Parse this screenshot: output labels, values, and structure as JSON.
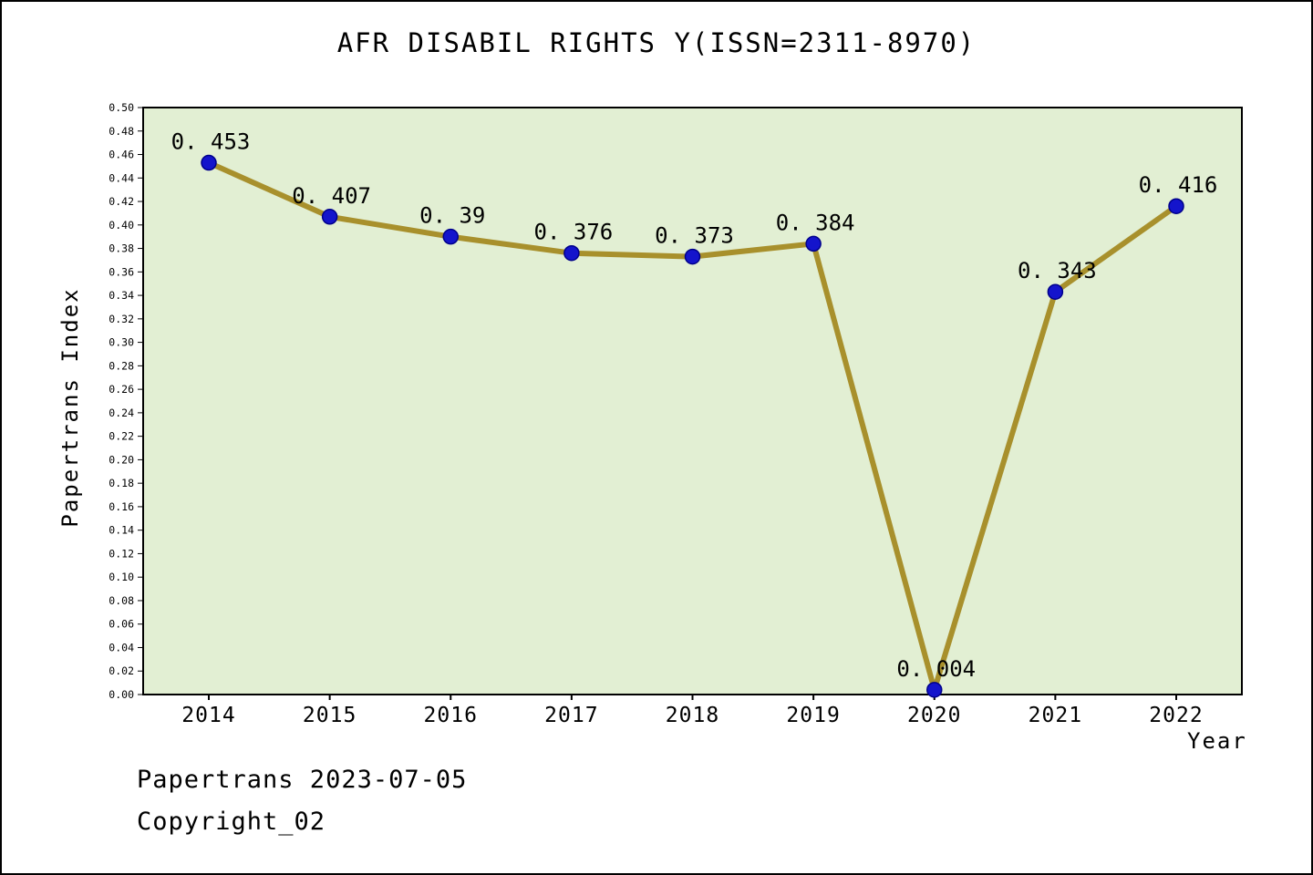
{
  "chart_data": {
    "type": "line",
    "title": "AFR DISABIL RIGHTS Y(ISSN=2311-8970)",
    "xlabel": "Year",
    "ylabel": "Papertrans Index",
    "x": [
      2014,
      2015,
      2016,
      2017,
      2018,
      2019,
      2020,
      2021,
      2022
    ],
    "values": [
      0.453,
      0.407,
      0.39,
      0.376,
      0.373,
      0.384,
      0.004,
      0.343,
      0.416
    ],
    "point_labels": [
      "0. 453",
      "0. 407",
      "0. 39",
      "0. 376",
      "0. 373",
      "0. 384",
      "0. 004",
      "0. 343",
      "0. 416"
    ],
    "ylim": [
      0.0,
      0.5
    ],
    "ytick_step": 0.02,
    "grid": false,
    "legend": "none",
    "colors": {
      "plot_bg": "#e2efd3",
      "line": "#a8902c",
      "point_fill": "#1414cc",
      "point_stroke": "#00008b",
      "axis": "#000000"
    }
  },
  "footer": {
    "line1": "Papertrans 2023-07-05",
    "line2": "Copyright_02"
  }
}
